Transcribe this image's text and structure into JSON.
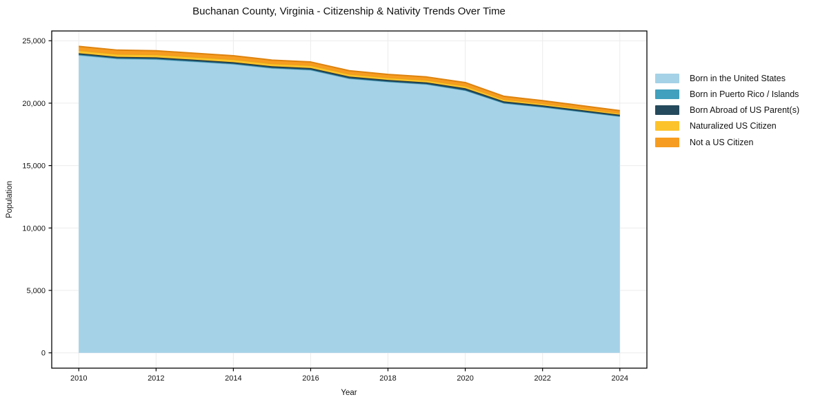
{
  "chart_data": {
    "type": "area",
    "stacked": true,
    "title": "Buchanan County, Virginia - Citizenship & Nativity Trends Over Time",
    "xlabel": "Year",
    "ylabel": "Population",
    "x": [
      2010,
      2011,
      2012,
      2013,
      2014,
      2015,
      2016,
      2017,
      2018,
      2019,
      2020,
      2021,
      2022,
      2023,
      2024
    ],
    "x_ticks": [
      2010,
      2012,
      2014,
      2016,
      2018,
      2020,
      2022,
      2024
    ],
    "y_ticks": [
      0,
      5000,
      10000,
      15000,
      20000,
      25000
    ],
    "xlim": [
      2009.3,
      2024.7
    ],
    "ylim": [
      -1228,
      25783
    ],
    "grid": true,
    "legend_position": "right",
    "background_color": "#ffffff",
    "grid_color": "#ebebeb",
    "axis_color": "#000000",
    "series": [
      {
        "name": "Born in the United States",
        "color": "#a5d2e7",
        "edge_color": "#7db8d6",
        "values": [
          23835,
          23550,
          23500,
          23315,
          23120,
          22790,
          22645,
          21960,
          21705,
          21505,
          21015,
          19990,
          19680,
          19310,
          18940
        ]
      },
      {
        "name": "Born in Puerto Rico / Islands",
        "color": "#41a0bd",
        "edge_color": "#2d7f99",
        "values": [
          55,
          50,
          50,
          50,
          45,
          45,
          45,
          40,
          35,
          35,
          30,
          30,
          25,
          25,
          20
        ]
      },
      {
        "name": "Born Abroad of US Parent(s)",
        "color": "#254a5d",
        "edge_color": "#16303f",
        "values": [
          110,
          110,
          115,
          115,
          120,
          120,
          125,
          130,
          120,
          125,
          150,
          130,
          120,
          115,
          110
        ]
      },
      {
        "name": "Naturalized US Citizen",
        "color": "#fcc32b",
        "edge_color": "#e2a618",
        "values": [
          220,
          215,
          215,
          210,
          210,
          205,
          205,
          195,
          175,
          170,
          180,
          150,
          135,
          120,
          110
        ]
      },
      {
        "name": "Not a US Citizen",
        "color": "#f69c20",
        "edge_color": "#dd830f",
        "values": [
          330,
          325,
          320,
          310,
          305,
          290,
          280,
          275,
          265,
          265,
          275,
          250,
          240,
          230,
          220
        ]
      }
    ]
  }
}
